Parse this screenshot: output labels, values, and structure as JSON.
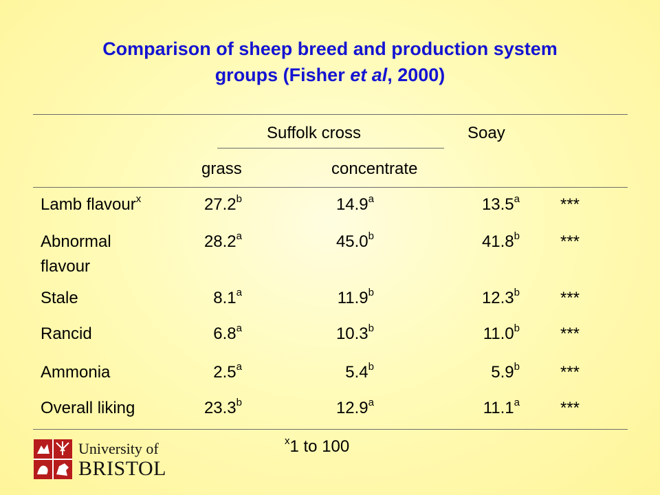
{
  "title": {
    "line1": "Comparison of sheep breed and production system",
    "line2_pre": "groups (Fisher ",
    "line2_em": "et al",
    "line2_post": ", 2000)"
  },
  "table": {
    "group_header_suffolk": "Suffolk cross",
    "group_header_soay": "Soay",
    "sub_header_grass": "grass",
    "sub_header_concentrate": "concentrate",
    "rows": [
      {
        "label": "Lamb flavour",
        "label_sup": "x",
        "grass": "27.2",
        "grass_sup": "b",
        "conc": "14.9",
        "conc_sup": "a",
        "soay": "13.5",
        "soay_sup": "a",
        "sig": "***"
      },
      {
        "label1": "Abnormal",
        "label2": "flavour",
        "grass": "28.2",
        "grass_sup": "a",
        "conc": "45.0",
        "conc_sup": "b",
        "soay": "41.8",
        "soay_sup": "b",
        "sig": "***"
      },
      {
        "label": "Stale",
        "grass": "8.1",
        "grass_sup": "a",
        "conc": "11.9",
        "conc_sup": "b",
        "soay": "12.3",
        "soay_sup": "b",
        "sig": "***"
      },
      {
        "label": "Rancid",
        "grass": "6.8",
        "grass_sup": "a",
        "conc": "10.3",
        "conc_sup": "b",
        "soay": "11.0",
        "soay_sup": "b",
        "sig": "***"
      },
      {
        "label": "Ammonia",
        "grass": "2.5",
        "grass_sup": "a",
        "conc": "5.4",
        "conc_sup": "b",
        "soay": "5.9",
        "soay_sup": "b",
        "sig": "***"
      },
      {
        "label": "Overall liking",
        "grass": "23.3",
        "grass_sup": "b",
        "conc": "12.9",
        "conc_sup": "a",
        "soay": "11.1",
        "soay_sup": "a",
        "sig": "***"
      }
    ],
    "footnote_sup": "x",
    "footnote_text": "1 to 100"
  },
  "logo": {
    "line1": "University of",
    "line2": "BRISTOL",
    "shield_color": "#b71c1c"
  }
}
